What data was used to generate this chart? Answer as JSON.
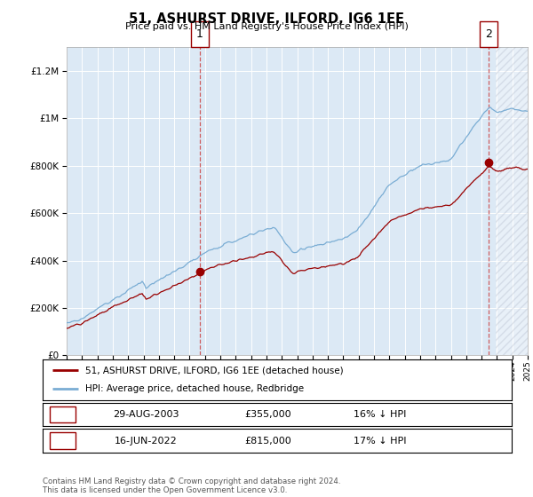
{
  "title": "51, ASHURST DRIVE, ILFORD, IG6 1EE",
  "subtitle": "Price paid vs. HM Land Registry's House Price Index (HPI)",
  "legend_label_red": "51, ASHURST DRIVE, ILFORD, IG6 1EE (detached house)",
  "legend_label_blue": "HPI: Average price, detached house, Redbridge",
  "annotation1_date": "29-AUG-2003",
  "annotation1_price": 355000,
  "annotation1_label": "16% ↓ HPI",
  "annotation1_year": 2003.66,
  "annotation2_date": "16-JUN-2022",
  "annotation2_price": 815000,
  "annotation2_label": "17% ↓ HPI",
  "annotation2_year": 2022.46,
  "footer": "Contains HM Land Registry data © Crown copyright and database right 2024.\nThis data is licensed under the Open Government Licence v3.0.",
  "bg_color": "#dce9f5",
  "red_color": "#990000",
  "blue_color": "#7aadd4",
  "ylim_max": 1300000,
  "xmin": 1995,
  "xmax": 2025
}
